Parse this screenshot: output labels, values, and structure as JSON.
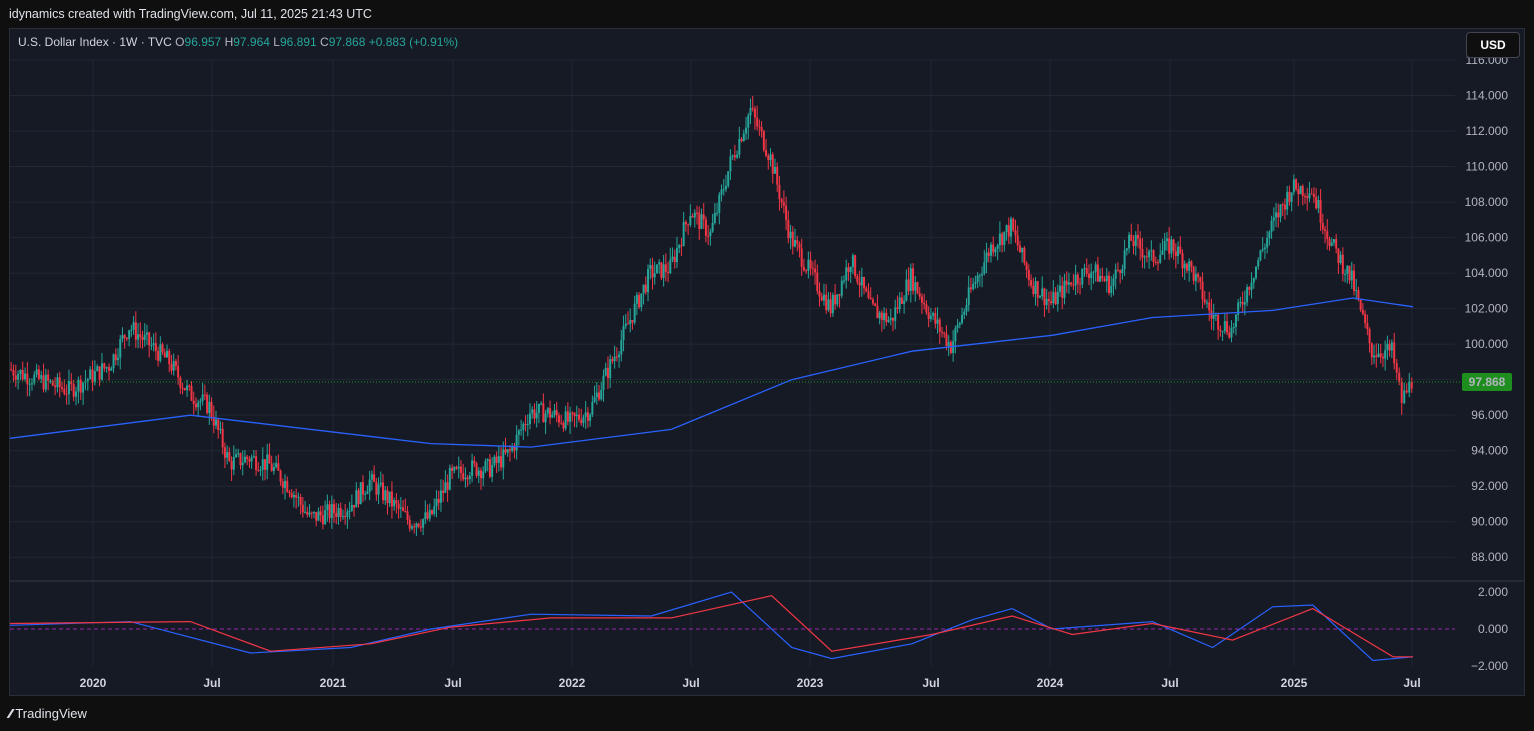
{
  "header": {
    "title": "idynamics created with TradingView.com, Jul 11, 2025 21:43 UTC"
  },
  "legend": {
    "symbol": "U.S. Dollar Index · 1W · TVC",
    "open_label": "O",
    "open": "96.957",
    "high_label": "H",
    "high": "97.964",
    "low_label": "L",
    "low": "96.891",
    "close_label": "C",
    "close": "97.868",
    "change": "+0.883 (+0.91%)"
  },
  "currency_button": "USD",
  "footer": {
    "brand": "TradingView"
  },
  "colors": {
    "up": "#26a69a",
    "down": "#f23645",
    "ma": "#2962ff",
    "macd": "#2962ff",
    "signal": "#f23645",
    "last_price_bg": "#1e8e1e"
  },
  "chart_data": {
    "type": "candlestick",
    "price_axis": {
      "min": 87,
      "max": 116,
      "ticks": [
        "88.000",
        "90.000",
        "92.000",
        "94.000",
        "96.000",
        "98.000",
        "100.000",
        "102.000",
        "104.000",
        "106.000",
        "108.000",
        "110.000",
        "112.000",
        "114.000",
        "116.000"
      ]
    },
    "time_axis": {
      "ticks": [
        "2020",
        "Jul",
        "2021",
        "Jul",
        "2022",
        "Jul",
        "2023",
        "Jul",
        "2024",
        "Jul",
        "2025",
        "Jul"
      ]
    },
    "last_price": "97.868",
    "price_path": [
      [
        "2019-09",
        98.6
      ],
      [
        "2019-12",
        97.4
      ],
      [
        "2020-02",
        98.8
      ],
      [
        "2020-03",
        101.0
      ],
      [
        "2020-04",
        100.0
      ],
      [
        "2020-05",
        99.0
      ],
      [
        "2020-06",
        97.2
      ],
      [
        "2020-07",
        96.5
      ],
      [
        "2020-08",
        93.3
      ],
      [
        "2020-09",
        93.6
      ],
      [
        "2020-10",
        93.2
      ],
      [
        "2020-11",
        92.0
      ],
      [
        "2020-12",
        90.2
      ],
      [
        "2021-01",
        90.5
      ],
      [
        "2021-02",
        90.9
      ],
      [
        "2021-03",
        92.3
      ],
      [
        "2021-04",
        91.2
      ],
      [
        "2021-05",
        90.0
      ],
      [
        "2021-06",
        90.2
      ],
      [
        "2021-07",
        92.5
      ],
      [
        "2021-08",
        93.0
      ],
      [
        "2021-09",
        93.0
      ],
      [
        "2021-10",
        93.9
      ],
      [
        "2021-11",
        96.2
      ],
      [
        "2021-12",
        96.1
      ],
      [
        "2022-01",
        95.6
      ],
      [
        "2022-02",
        96.3
      ],
      [
        "2022-03",
        98.8
      ],
      [
        "2022-04",
        101.4
      ],
      [
        "2022-05",
        104.0
      ],
      [
        "2022-06",
        104.3
      ],
      [
        "2022-07",
        107.5
      ],
      [
        "2022-08",
        106.2
      ],
      [
        "2022-09",
        110.2
      ],
      [
        "2022-10",
        113.2
      ],
      [
        "2022-11",
        110.5
      ],
      [
        "2022-12",
        106.0
      ],
      [
        "2023-01",
        104.0
      ],
      [
        "2023-02",
        102.0
      ],
      [
        "2023-03",
        104.8
      ],
      [
        "2023-04",
        102.0
      ],
      [
        "2023-05",
        101.3
      ],
      [
        "2023-06",
        103.8
      ],
      [
        "2023-07",
        101.6
      ],
      [
        "2023-08",
        99.9
      ],
      [
        "2023-09",
        103.0
      ],
      [
        "2023-10",
        105.5
      ],
      [
        "2023-11",
        106.6
      ],
      [
        "2023-12",
        103.5
      ],
      [
        "2024-01",
        102.3
      ],
      [
        "2024-02",
        103.6
      ],
      [
        "2024-03",
        104.2
      ],
      [
        "2024-04",
        103.3
      ],
      [
        "2024-05",
        105.9
      ],
      [
        "2024-06",
        104.8
      ],
      [
        "2024-07",
        105.6
      ],
      [
        "2024-08",
        104.2
      ],
      [
        "2024-09",
        101.6
      ],
      [
        "2024-10",
        100.8
      ],
      [
        "2024-11",
        103.8
      ],
      [
        "2024-12",
        106.6
      ],
      [
        "2025-01",
        108.8
      ],
      [
        "2025-02",
        108.7
      ],
      [
        "2025-03",
        105.6
      ],
      [
        "2025-04",
        103.6
      ],
      [
        "2025-05",
        99.6
      ],
      [
        "2025-06",
        99.6
      ],
      [
        "2025-06b",
        96.8
      ],
      [
        "2025-07",
        97.9
      ]
    ],
    "moving_average": [
      [
        "2019-09",
        94.7
      ],
      [
        "2020-06",
        96.0
      ],
      [
        "2021-06",
        94.4
      ],
      [
        "2021-11",
        94.2
      ],
      [
        "2022-06",
        95.2
      ],
      [
        "2022-12",
        98.0
      ],
      [
        "2023-06",
        99.6
      ],
      [
        "2024-01",
        100.5
      ],
      [
        "2024-06",
        101.5
      ],
      [
        "2024-12",
        101.9
      ],
      [
        "2025-04",
        102.6
      ],
      [
        "2025-07",
        102.1
      ]
    ],
    "oscillator": {
      "axis_ticks": [
        "2.000",
        "0.000",
        "−2.000"
      ],
      "range": [
        -2.0,
        2.0
      ],
      "macd": [
        [
          "2019-09",
          0.2
        ],
        [
          "2020-03",
          0.4
        ],
        [
          "2020-09",
          -1.3
        ],
        [
          "2021-02",
          -1.0
        ],
        [
          "2021-06",
          0.0
        ],
        [
          "2021-11",
          0.8
        ],
        [
          "2022-05",
          0.7
        ],
        [
          "2022-09",
          2.0
        ],
        [
          "2022-12",
          -1.0
        ],
        [
          "2023-02",
          -1.6
        ],
        [
          "2023-06",
          -0.8
        ],
        [
          "2023-09",
          0.5
        ],
        [
          "2023-11",
          1.1
        ],
        [
          "2024-01",
          0.0
        ],
        [
          "2024-06",
          0.4
        ],
        [
          "2024-09",
          -1.0
        ],
        [
          "2024-12",
          1.2
        ],
        [
          "2025-02",
          1.3
        ],
        [
          "2025-05",
          -1.7
        ],
        [
          "2025-07",
          -1.5
        ]
      ],
      "signal": [
        [
          "2019-09",
          0.3
        ],
        [
          "2020-06",
          0.4
        ],
        [
          "2020-10",
          -1.2
        ],
        [
          "2021-03",
          -0.8
        ],
        [
          "2021-07",
          0.1
        ],
        [
          "2021-12",
          0.6
        ],
        [
          "2022-06",
          0.6
        ],
        [
          "2022-11",
          1.8
        ],
        [
          "2023-02",
          -1.2
        ],
        [
          "2023-07",
          -0.3
        ],
        [
          "2023-11",
          0.7
        ],
        [
          "2024-02",
          -0.3
        ],
        [
          "2024-06",
          0.3
        ],
        [
          "2024-10",
          -0.6
        ],
        [
          "2025-02",
          1.1
        ],
        [
          "2025-06",
          -1.5
        ],
        [
          "2025-07",
          -1.5
        ]
      ]
    }
  }
}
